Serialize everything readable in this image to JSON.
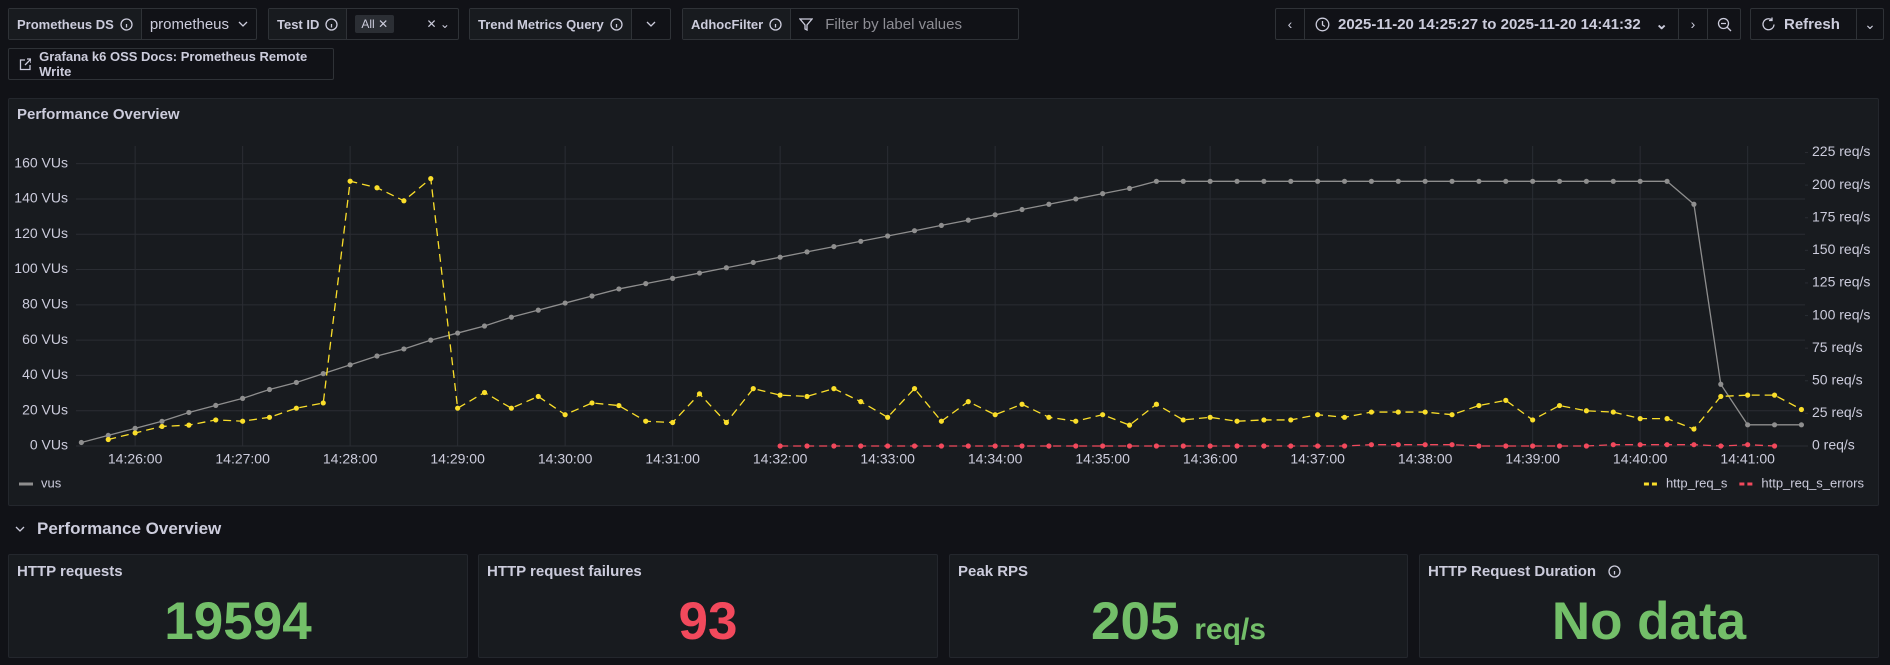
{
  "toolbar": {
    "variables": [
      {
        "label": "Prometheus DS",
        "value": "prometheus"
      },
      {
        "label": "Test ID",
        "value": "All"
      },
      {
        "label": "Trend Metrics Query"
      },
      {
        "label": "AdhocFilter",
        "placeholder": "Filter by label values"
      }
    ],
    "time_range": "2025-11-20 14:25:27 to 2025-11-20 14:41:32",
    "refresh": "Refresh",
    "link": "Grafana k6 OSS Docs: Prometheus Remote Write"
  },
  "chart_data": {
    "type": "line",
    "title": "Performance Overview",
    "grid": true,
    "x": [
      "14:25:30",
      "14:25:45",
      "14:26:00",
      "14:26:15",
      "14:26:30",
      "14:26:45",
      "14:27:00",
      "14:27:15",
      "14:27:30",
      "14:27:45",
      "14:28:00",
      "14:28:15",
      "14:28:30",
      "14:28:45",
      "14:29:00",
      "14:29:15",
      "14:29:30",
      "14:29:45",
      "14:30:00",
      "14:30:15",
      "14:30:30",
      "14:30:45",
      "14:31:00",
      "14:31:15",
      "14:31:30",
      "14:31:45",
      "14:32:00",
      "14:32:15",
      "14:32:30",
      "14:32:45",
      "14:33:00",
      "14:33:15",
      "14:33:30",
      "14:33:45",
      "14:34:00",
      "14:34:15",
      "14:34:30",
      "14:34:45",
      "14:35:00",
      "14:35:15",
      "14:35:30",
      "14:35:45",
      "14:36:00",
      "14:36:15",
      "14:36:30",
      "14:36:45",
      "14:37:00",
      "14:37:15",
      "14:37:30",
      "14:37:45",
      "14:38:00",
      "14:38:15",
      "14:38:30",
      "14:38:45",
      "14:39:00",
      "14:39:15",
      "14:39:30",
      "14:39:45",
      "14:40:00",
      "14:40:15",
      "14:40:30",
      "14:40:45",
      "14:41:00",
      "14:41:15",
      "14:41:30"
    ],
    "xlim": [
      "14:25:27",
      "14:41:32"
    ],
    "xticks": [
      "14:26:00",
      "14:27:00",
      "14:28:00",
      "14:29:00",
      "14:30:00",
      "14:31:00",
      "14:32:00",
      "14:33:00",
      "14:34:00",
      "14:35:00",
      "14:36:00",
      "14:37:00",
      "14:38:00",
      "14:39:00",
      "14:40:00",
      "14:41:00"
    ],
    "ylim": [
      0,
      170
    ],
    "yticks": [
      {
        "value": 0,
        "label": "0 VUs"
      },
      {
        "value": 20,
        "label": "20 VUs"
      },
      {
        "value": 40,
        "label": "40 VUs"
      },
      {
        "value": 60,
        "label": "60 VUs"
      },
      {
        "value": 80,
        "label": "80 VUs"
      },
      {
        "value": 100,
        "label": "100 VUs"
      },
      {
        "value": 120,
        "label": "120 VUs"
      },
      {
        "value": 140,
        "label": "140 VUs"
      },
      {
        "value": 160,
        "label": "160 VUs"
      }
    ],
    "y2lim": [
      0,
      230
    ],
    "y2ticks": [
      {
        "value": 0,
        "label": "0 req/s"
      },
      {
        "value": 25,
        "label": "25 req/s"
      },
      {
        "value": 50,
        "label": "50 req/s"
      },
      {
        "value": 75,
        "label": "75 req/s"
      },
      {
        "value": 100,
        "label": "100 req/s"
      },
      {
        "value": 125,
        "label": "125 req/s"
      },
      {
        "value": 150,
        "label": "150 req/s"
      },
      {
        "value": 175,
        "label": "175 req/s"
      },
      {
        "value": 200,
        "label": "200 req/s"
      },
      {
        "value": 225,
        "label": "225 req/s"
      }
    ],
    "series": [
      {
        "name": "vus",
        "color": "#8e8e8e",
        "line_style": "solid",
        "values": [
          2,
          6,
          10,
          14,
          19,
          23,
          27,
          32,
          36,
          41,
          46,
          51,
          55,
          60,
          64,
          68,
          73,
          77,
          81,
          85,
          89,
          92,
          95,
          98,
          101,
          104,
          107,
          110,
          113,
          116,
          119,
          122,
          125,
          128,
          131,
          134,
          137,
          140,
          143,
          146,
          150,
          150,
          150,
          150,
          150,
          150,
          150,
          150,
          150,
          150,
          150,
          150,
          150,
          150,
          150,
          150,
          150,
          150,
          150,
          150,
          137,
          35,
          12,
          12,
          12
        ]
      },
      {
        "name": "http_req_s",
        "color": "#fade2a",
        "line_style": "dashed",
        "axis": "y2",
        "values": [
          null,
          5,
          10,
          15,
          16,
          20,
          19,
          22,
          29,
          33,
          203,
          198,
          188,
          205,
          29,
          41,
          29,
          38,
          24,
          33,
          31,
          19,
          18,
          40,
          18,
          44,
          39,
          38,
          44,
          34,
          22,
          44,
          19,
          34,
          24,
          32,
          22,
          19,
          24,
          16,
          32,
          20,
          22,
          19,
          20,
          20,
          24,
          22,
          26,
          26,
          26,
          24,
          31,
          35,
          20,
          31,
          27,
          26,
          21,
          21,
          13,
          38,
          39,
          39,
          28
        ]
      },
      {
        "name": "http_req_s_errors",
        "color": "#f2495c",
        "line_style": "dashed",
        "axis": "y2",
        "values": [
          null,
          null,
          null,
          null,
          null,
          null,
          null,
          null,
          null,
          null,
          null,
          null,
          null,
          null,
          null,
          null,
          null,
          null,
          null,
          null,
          null,
          null,
          null,
          null,
          null,
          null,
          0,
          0,
          0,
          0,
          0,
          0,
          0,
          0,
          0,
          0,
          0,
          0,
          0,
          0,
          0,
          0,
          0,
          0,
          0,
          0,
          0,
          0,
          1,
          1,
          1,
          1,
          0,
          0,
          0,
          0,
          0,
          1,
          1,
          1,
          1,
          0,
          1,
          0,
          null
        ]
      }
    ]
  },
  "row_title": "Performance Overview",
  "stats": [
    {
      "title": "HTTP requests",
      "value": 19594,
      "color": "#73bf69"
    },
    {
      "title": "HTTP request failures",
      "value": 93,
      "color": "#f2495c"
    },
    {
      "title": "Peak RPS",
      "value": 205,
      "unit": "req/s",
      "color": "#73bf69"
    },
    {
      "title": "HTTP Request Duration",
      "value": "No data",
      "color": "#73bf69"
    }
  ]
}
